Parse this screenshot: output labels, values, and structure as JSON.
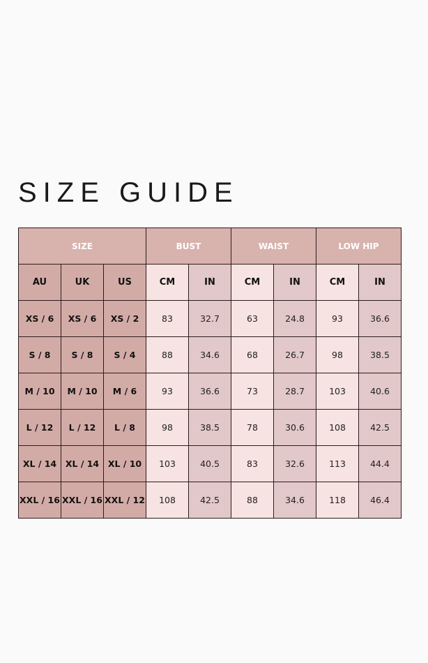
{
  "title": "SIZE GUIDE",
  "groups": [
    "SIZE",
    "BUST",
    "WAIST",
    "LOW HIP"
  ],
  "subheaders": [
    "AU",
    "UK",
    "US",
    "CM",
    "IN",
    "CM",
    "IN",
    "CM",
    "IN"
  ],
  "rows": [
    [
      "XS / 6",
      "XS / 6",
      "XS / 2",
      "83",
      "32.7",
      "63",
      "24.8",
      "93",
      "36.6"
    ],
    [
      "S / 8",
      "S / 8",
      "S / 4",
      "88",
      "34.6",
      "68",
      "26.7",
      "98",
      "38.5"
    ],
    [
      "M / 10",
      "M / 10",
      "M / 6",
      "93",
      "36.6",
      "73",
      "28.7",
      "103",
      "40.6"
    ],
    [
      "L / 12",
      "L / 12",
      "L / 8",
      "98",
      "38.5",
      "78",
      "30.6",
      "108",
      "42.5"
    ],
    [
      "XL / 14",
      "XL / 14",
      "XL / 10",
      "103",
      "40.5",
      "83",
      "32.6",
      "113",
      "44.4"
    ],
    [
      "XXL / 16",
      "XXL / 16",
      "XXL / 12",
      "108",
      "42.5",
      "88",
      "34.6",
      "118",
      "46.4"
    ]
  ],
  "colors": {
    "header": "#d8b2ad",
    "size_cell": "#d3aba6",
    "cm_cell": "#f7e3e1",
    "in_cell": "#e3c8c9",
    "border": "#2a1c1c"
  }
}
